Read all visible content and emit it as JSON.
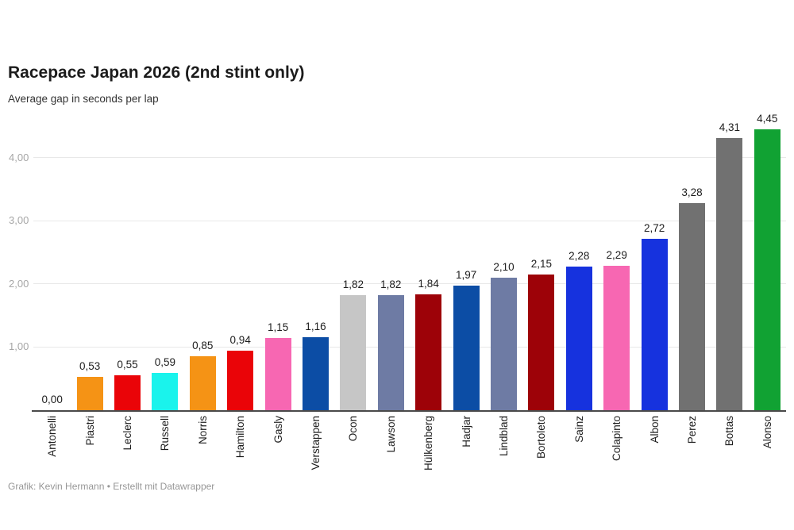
{
  "header": {
    "title": "Racepace Japan 2026 (2nd stint only)",
    "subtitle": "Average gap in seconds per lap"
  },
  "footer": {
    "credit": "Grafik: Kevin Hermann • Erstellt mit Datawrapper"
  },
  "chart_data": {
    "type": "bar",
    "title": "Racepace Japan 2026 (2nd stint only)",
    "subtitle": "Average gap in seconds per lap",
    "xlabel": "",
    "ylabel": "Average gap in seconds per lap",
    "ylim": [
      0,
      4.6
    ],
    "grid": "horizontal gridlines at 1.00 steps",
    "legend": "none",
    "decimal_separator": "comma",
    "categories": [
      "Antonelli",
      "Piastri",
      "Leclerc",
      "Russell",
      "Norris",
      "Hamilton",
      "Gasly",
      "Verstappen",
      "Ocon",
      "Lawson",
      "Hülkenberg",
      "Hadjar",
      "Lindblad",
      "Bortoleto",
      "Sainz",
      "Colapinto",
      "Albon",
      "Perez",
      "Bottas",
      "Alonso"
    ],
    "values": [
      0.0,
      0.53,
      0.55,
      0.59,
      0.85,
      0.94,
      1.15,
      1.16,
      1.82,
      1.82,
      1.84,
      1.97,
      2.1,
      2.15,
      2.28,
      2.29,
      2.72,
      3.28,
      4.31,
      4.45
    ],
    "value_labels": [
      "0,00",
      "0,53",
      "0,55",
      "0,59",
      "0,85",
      "0,94",
      "1,15",
      "1,16",
      "1,82",
      "1,82",
      "1,84",
      "1,97",
      "2,10",
      "2,15",
      "2,28",
      "2,29",
      "2,72",
      "3,28",
      "4,31",
      "4,45"
    ],
    "bar_colors": [
      "#1AF3EC",
      "#F59315",
      "#EA0408",
      "#1AF3EC",
      "#F59315",
      "#EA0408",
      "#F767B2",
      "#0C4DA5",
      "#C6C6C6",
      "#6E7BA4",
      "#9D0208",
      "#0C4DA5",
      "#6E7BA4",
      "#9D0208",
      "#1632DE",
      "#F767B2",
      "#1632DE",
      "#717171",
      "#717171",
      "#11A233"
    ],
    "yticks": [
      {
        "value": 1,
        "label": "1,00"
      },
      {
        "value": 2,
        "label": "2,00"
      },
      {
        "value": 3,
        "label": "3,00"
      },
      {
        "value": 4,
        "label": "4,00"
      }
    ],
    "axis_colors": {
      "gridline": "#e8e8e8",
      "baseline": "#4a4a4a",
      "tick_text": "#a6a6a6",
      "value_text": "#1d1d1d"
    }
  }
}
